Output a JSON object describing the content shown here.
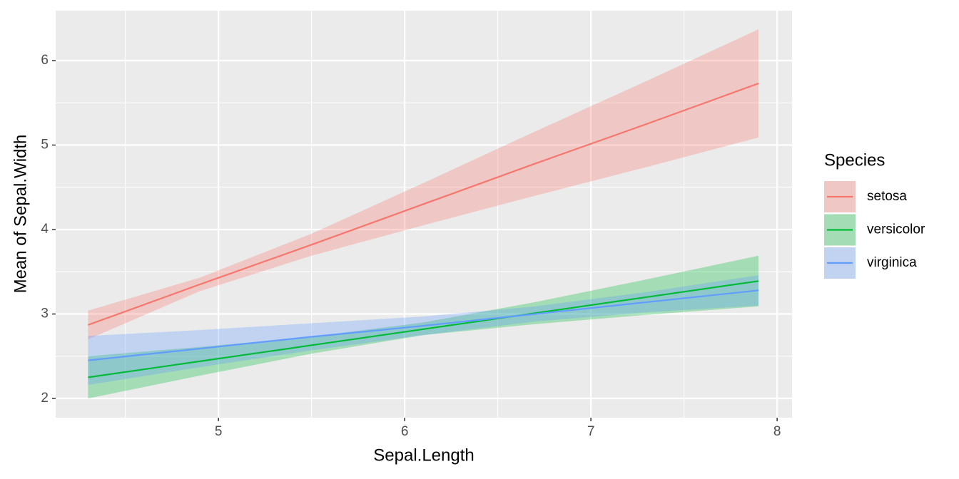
{
  "chart_data": {
    "type": "line",
    "xlabel": "Sepal.Length",
    "ylabel": "Mean of Sepal.Width",
    "legend_title": "Species",
    "legend": "right",
    "x": [
      4.3,
      4.9,
      5.5,
      6.1,
      6.7,
      7.3,
      7.9
    ],
    "series": [
      {
        "name": "setosa",
        "color": "#F8766D",
        "values": [
          2.87,
          3.35,
          3.82,
          4.3,
          4.78,
          5.25,
          5.73
        ],
        "lower": [
          2.7,
          3.27,
          3.69,
          4.05,
          4.4,
          4.74,
          5.09
        ],
        "upper": [
          3.04,
          3.43,
          3.95,
          4.55,
          5.16,
          5.76,
          6.37
        ]
      },
      {
        "name": "versicolor",
        "color": "#00BA38",
        "values": [
          2.25,
          2.44,
          2.63,
          2.82,
          3.01,
          3.2,
          3.39
        ],
        "lower": [
          2.0,
          2.27,
          2.53,
          2.75,
          2.88,
          2.99,
          3.09
        ],
        "upper": [
          2.5,
          2.61,
          2.73,
          2.9,
          3.14,
          3.41,
          3.69
        ]
      },
      {
        "name": "virginica",
        "color": "#619CFF",
        "values": [
          2.45,
          2.59,
          2.73,
          2.86,
          3.0,
          3.14,
          3.28
        ],
        "lower": [
          2.16,
          2.37,
          2.57,
          2.75,
          2.91,
          3.02,
          3.1
        ],
        "upper": [
          2.74,
          2.81,
          2.89,
          2.97,
          3.09,
          3.26,
          3.46
        ]
      }
    ],
    "xlim": [
      4.126,
      8.08
    ],
    "xticks": [
      5,
      6,
      7,
      8
    ],
    "xminor": [
      4.5,
      5.5,
      6.5,
      7.5
    ],
    "ylim": [
      1.772,
      6.591
    ],
    "yticks": [
      2,
      3,
      4,
      5,
      6
    ],
    "yminor": [
      2.5,
      3.5,
      4.5,
      5.5
    ],
    "grid": true,
    "ribbon_opacity": 0.3
  }
}
